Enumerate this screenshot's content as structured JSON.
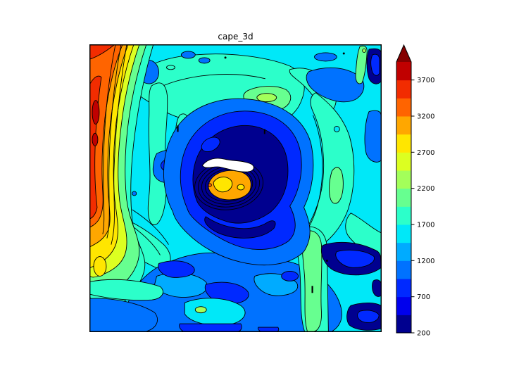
{
  "figure": {
    "background": "#ffffff"
  },
  "chart_data": {
    "type": "filled_contour",
    "title": "cape_3d",
    "colormap": "jet",
    "extend": "max",
    "levels": [
      200,
      450,
      700,
      950,
      1200,
      1450,
      1700,
      1950,
      2200,
      2450,
      2700,
      2950,
      3200,
      3450,
      3700,
      3950
    ],
    "band_colors": [
      "#00008f",
      "#0000ed",
      "#0029ff",
      "#0072ff",
      "#00abff",
      "#00e8f8",
      "#2cffca",
      "#67ff90",
      "#a3ff5a",
      "#dcff21",
      "#ffe600",
      "#ffa700",
      "#ff6400",
      "#f22c00",
      "#c00000"
    ],
    "over_color": "#850000",
    "below_min_color": "#ffffff",
    "contour_line_color": "#000000",
    "colorbar": {
      "orientation": "vertical",
      "ticks": [
        200,
        700,
        1200,
        1700,
        2200,
        2700,
        3200,
        3700
      ],
      "tick_labels": [
        "200",
        "700",
        "1200",
        "1700",
        "2200",
        "2700",
        "3200",
        "3700"
      ]
    },
    "features": [
      {
        "name": "storm-eye",
        "description": "small orange/yellow maximum (~2700-3450) at domain center ringed by dense contour lines"
      },
      {
        "name": "masked-patch",
        "description": "white area (below lowest level 200) just north of the eye"
      },
      {
        "name": "moat-spiral",
        "description": "dark navy minimum band (200-700) spiraling around the center"
      },
      {
        "name": "west-edge-maximum",
        "description": "red/orange band (3200-3950) along the entire west edge with dark-red cores"
      },
      {
        "name": "ambient-field",
        "description": "cyan/turquoise background (~1450-1950) with dodger-blue lows (~950-1450) over the south half"
      },
      {
        "name": "southeast-lows",
        "description": "navy/blue patches (200-950) along the east edge and southeast corner"
      }
    ]
  }
}
